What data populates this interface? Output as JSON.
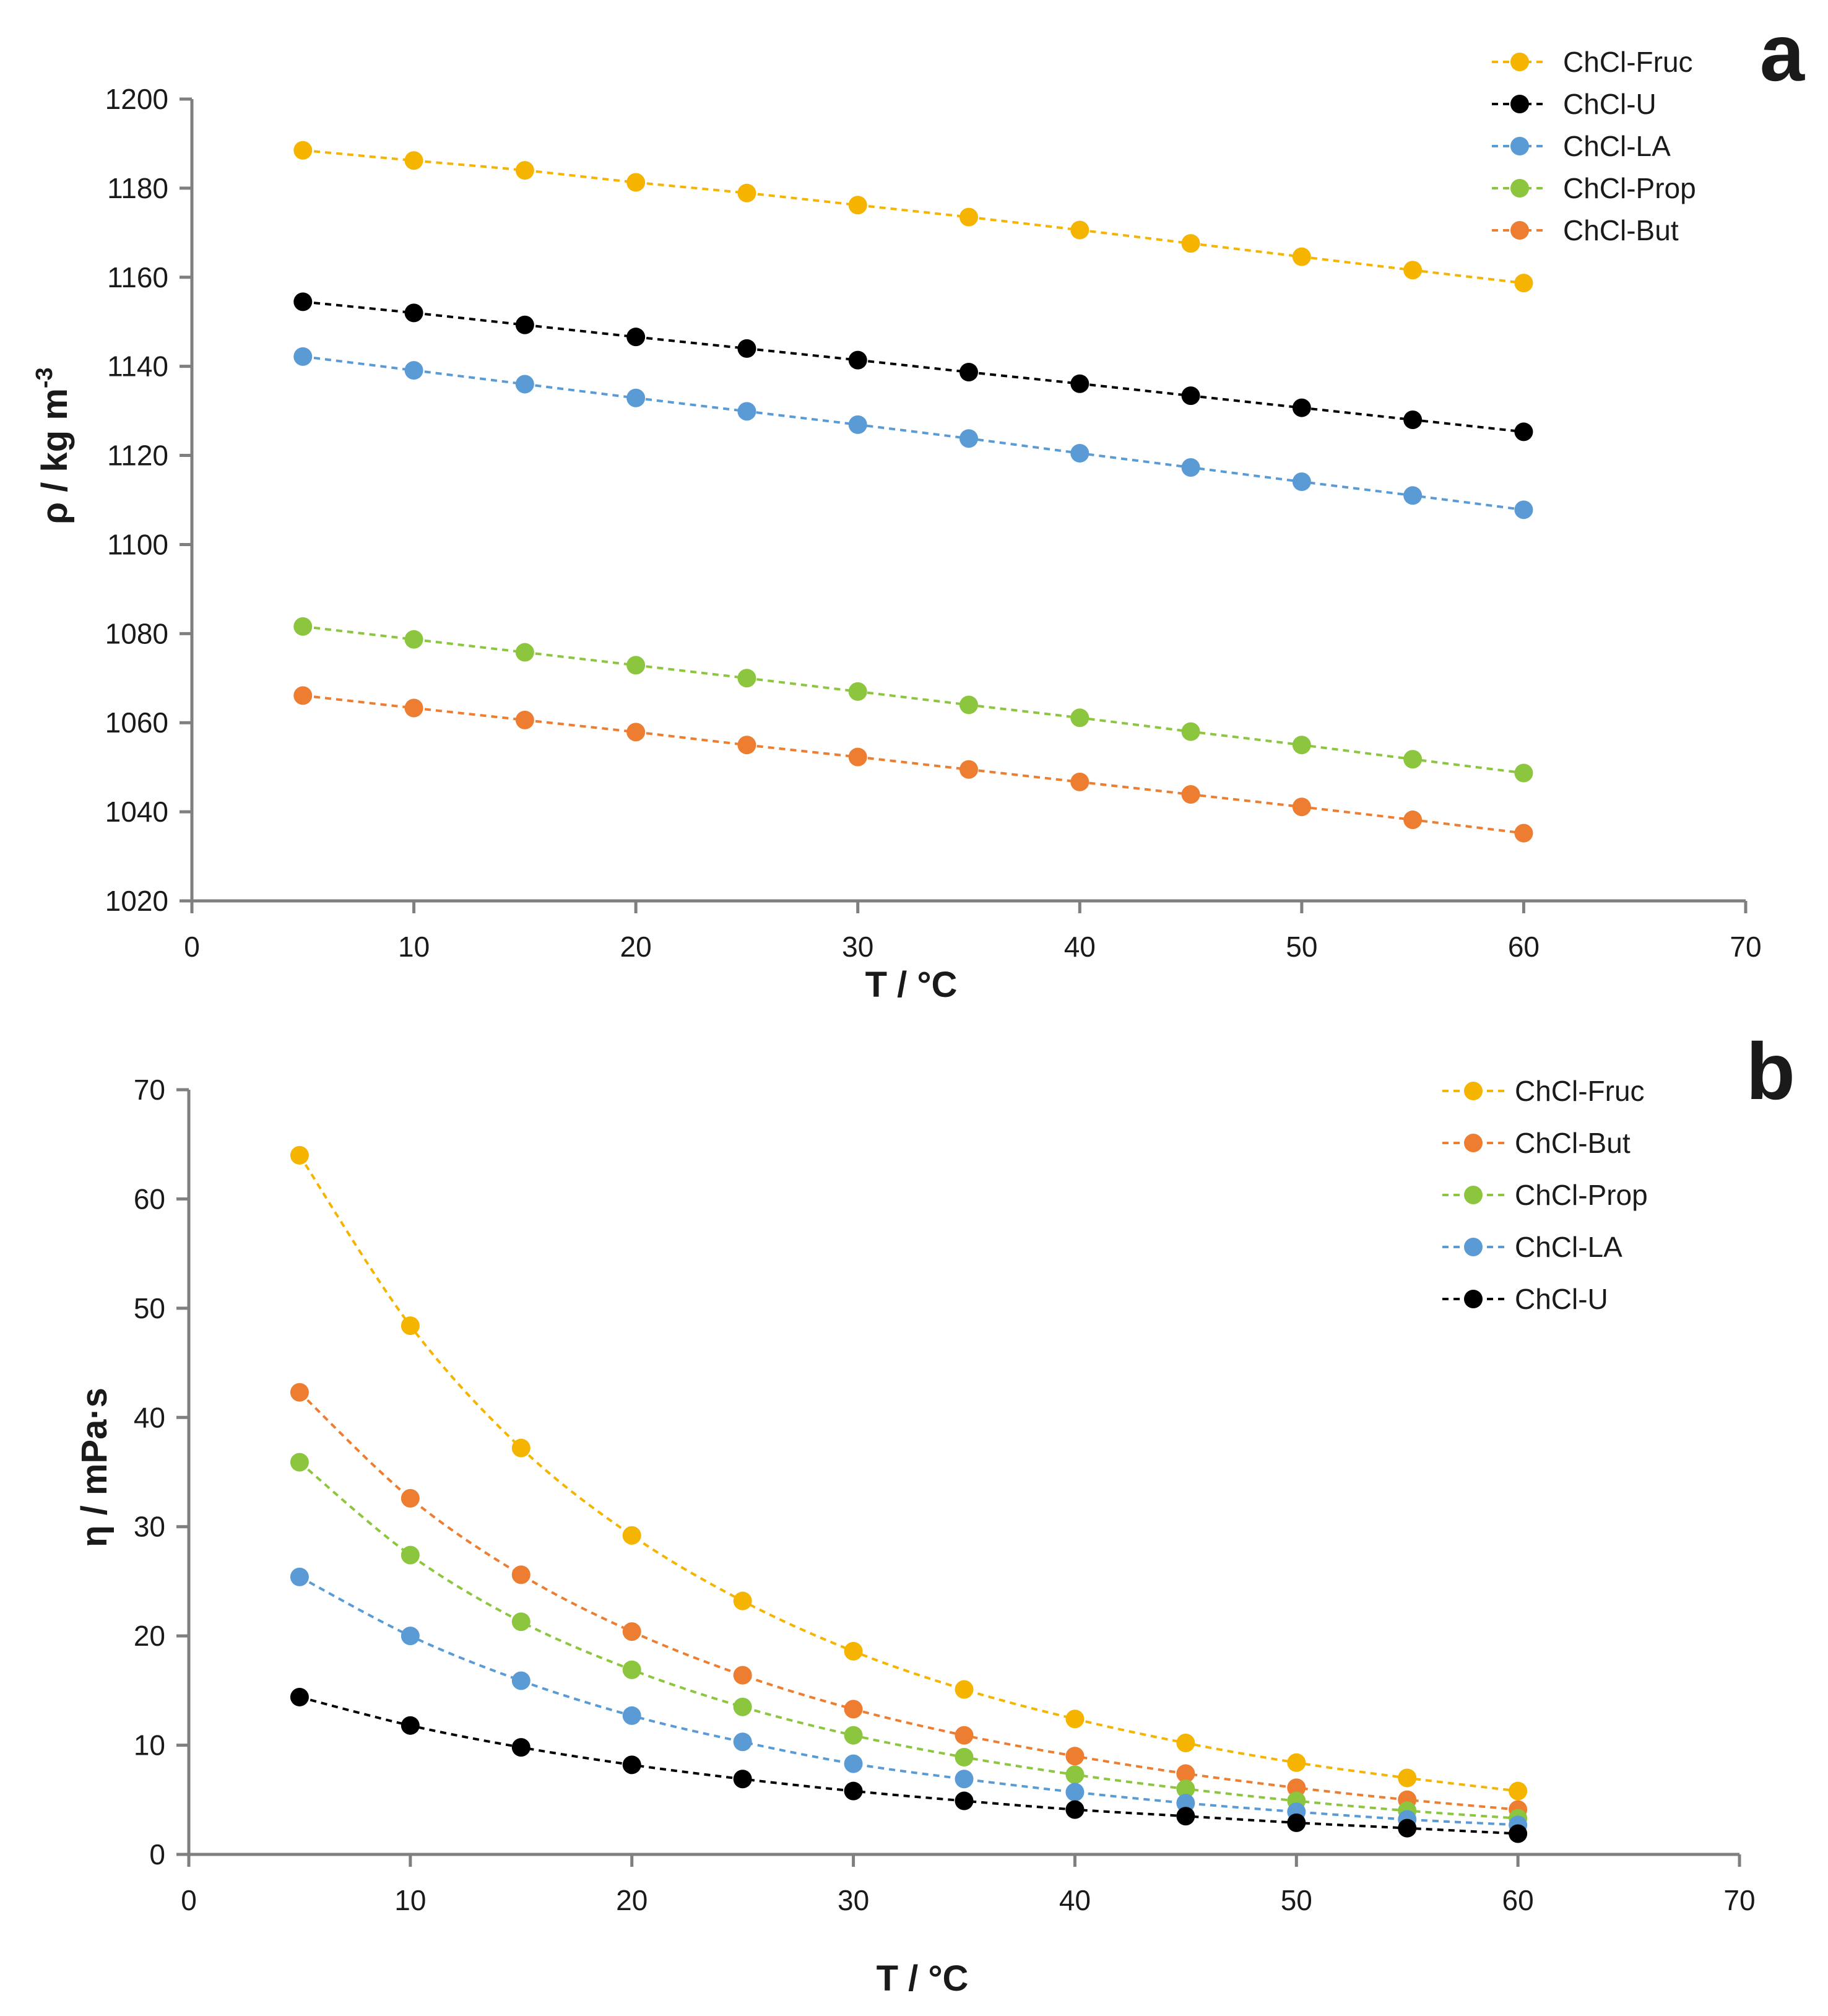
{
  "chart_data": [
    {
      "panel": "a",
      "type": "line",
      "xlabel": "T / °C",
      "ylabel": "ρ / kg m",
      "ylabel_sup": "-3",
      "xlim": [
        0,
        70
      ],
      "ylim": [
        1020,
        1200
      ],
      "x_ticks": [
        0,
        10,
        20,
        30,
        40,
        50,
        60,
        70
      ],
      "y_ticks": [
        1020,
        1040,
        1060,
        1080,
        1100,
        1120,
        1140,
        1160,
        1180,
        1200
      ],
      "grid": false,
      "legend_position": "top-right",
      "x": [
        5,
        10,
        15,
        20,
        25,
        30,
        35,
        40,
        45,
        50,
        55,
        60
      ],
      "series": [
        {
          "name": "ChCl-Fruc",
          "color": "#f5b400",
          "values": [
            1188.5,
            1186.2,
            1184.0,
            1181.3,
            1178.9,
            1176.2,
            1173.5,
            1170.6,
            1167.6,
            1164.6,
            1161.6,
            1158.7
          ]
        },
        {
          "name": "ChCl-U",
          "color": "#000000",
          "values": [
            1154.5,
            1152.0,
            1149.3,
            1146.6,
            1144.0,
            1141.4,
            1138.7,
            1136.1,
            1133.4,
            1130.7,
            1128.0,
            1125.3
          ]
        },
        {
          "name": "ChCl-LA",
          "color": "#5b9bd5",
          "values": [
            1142.2,
            1139.1,
            1136.0,
            1132.9,
            1129.9,
            1126.9,
            1123.8,
            1120.5,
            1117.3,
            1114.1,
            1111.0,
            1107.8
          ]
        },
        {
          "name": "ChCl-Prop",
          "color": "#8cc63f",
          "values": [
            1081.6,
            1078.7,
            1075.8,
            1072.9,
            1070.0,
            1067.0,
            1064.0,
            1061.1,
            1058.0,
            1055.0,
            1051.8,
            1048.7
          ]
        },
        {
          "name": "ChCl-But",
          "color": "#ed7d31",
          "values": [
            1066.1,
            1063.3,
            1060.6,
            1057.9,
            1055.0,
            1052.3,
            1049.5,
            1046.7,
            1043.9,
            1041.1,
            1038.2,
            1035.2
          ]
        }
      ]
    },
    {
      "panel": "b",
      "type": "line",
      "xlabel": "T / °C",
      "ylabel": "η / mPa·s",
      "xlim": [
        0,
        70
      ],
      "ylim": [
        0,
        70
      ],
      "x_ticks": [
        0,
        10,
        20,
        30,
        40,
        50,
        60,
        70
      ],
      "y_ticks": [
        0,
        10,
        20,
        30,
        40,
        50,
        60,
        70
      ],
      "grid": false,
      "legend_position": "top-right",
      "x": [
        5,
        10,
        15,
        20,
        25,
        30,
        35,
        40,
        45,
        50,
        55,
        60
      ],
      "series": [
        {
          "name": "ChCl-Fruc",
          "color": "#f5b400",
          "values": [
            64.0,
            48.4,
            37.2,
            29.2,
            23.2,
            18.6,
            15.1,
            12.4,
            10.2,
            8.4,
            7.0,
            5.8
          ]
        },
        {
          "name": "ChCl-But",
          "color": "#ed7d31",
          "values": [
            42.3,
            32.6,
            25.6,
            20.4,
            16.4,
            13.3,
            10.9,
            9.0,
            7.4,
            6.1,
            5.0,
            4.1
          ]
        },
        {
          "name": "ChCl-Prop",
          "color": "#8cc63f",
          "values": [
            35.9,
            27.4,
            21.3,
            16.9,
            13.5,
            10.9,
            8.9,
            7.3,
            6.0,
            4.9,
            4.0,
            3.3
          ]
        },
        {
          "name": "ChCl-LA",
          "color": "#5b9bd5",
          "values": [
            25.4,
            20.0,
            15.9,
            12.7,
            10.3,
            8.3,
            6.9,
            5.7,
            4.7,
            3.9,
            3.2,
            2.7
          ]
        },
        {
          "name": "ChCl-U",
          "color": "#000000",
          "values": [
            14.4,
            11.8,
            9.8,
            8.2,
            6.9,
            5.8,
            4.9,
            4.1,
            3.5,
            2.9,
            2.4,
            1.9
          ]
        }
      ]
    }
  ]
}
